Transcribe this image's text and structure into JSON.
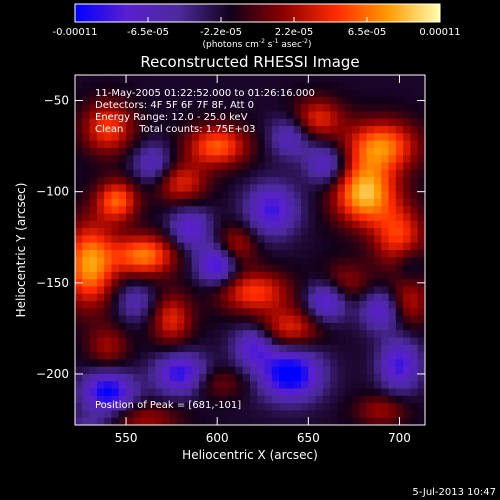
{
  "colorbar": {
    "ticks": [
      "-0.00011",
      "-6.5e-05",
      "-2.2e-05",
      "2.2e-05",
      "6.5e-05",
      "0.00011"
    ],
    "unit_prefix": "(photons cm",
    "unit_exp1": "-2",
    "unit_mid": " s",
    "unit_exp2": "-1",
    "unit_mid2": " asec",
    "unit_exp3": "-2",
    "unit_suffix": ")"
  },
  "annotations": {
    "line1": "11-May-2005 01:22:52.000 to 01:26:16.000",
    "line2": "Detectors: 4F 5F 6F 7F 8F, Att 0",
    "line3": "Energy Range: 12.0 - 25.0 keV",
    "line4": "Clean     Total counts: 1.75E+03",
    "peak": "Position of Peak = [681,-101]"
  },
  "footer": {
    "timestamp": "5-Jul-2013 10:47"
  },
  "colors": {
    "colormap": [
      "#0000ff",
      "#5a1fd0",
      "#4b2a9a",
      "#120018",
      "#8a0000",
      "#ff2a00",
      "#ff9a00",
      "#ffffb0"
    ]
  },
  "chart_data": {
    "type": "heatmap",
    "title": "Reconstructed RHESSI Image",
    "xlabel": "Heliocentric X (arcsec)",
    "ylabel": "Heliocentric Y (arcsec)",
    "xlim": [
      522,
      714
    ],
    "ylim": [
      -228,
      -36
    ],
    "x_ticks": [
      550,
      600,
      650,
      700
    ],
    "y_ticks": [
      -50,
      -100,
      -150,
      -200
    ],
    "x_tick_labels": [
      "550",
      "600",
      "650",
      "700"
    ],
    "y_tick_labels": [
      "−50",
      "−100",
      "−150",
      "−200"
    ],
    "colorbar_range": [
      -0.00011,
      0.00011
    ],
    "peak_position": [
      681,
      -101
    ],
    "blobs": [
      {
        "x": 681,
        "y": -101,
        "value": 0.00011,
        "sx": 12,
        "sy": 12
      },
      {
        "x": 690,
        "y": -75,
        "value": 9e-05,
        "sx": 14,
        "sy": 10
      },
      {
        "x": 700,
        "y": -125,
        "value": 7e-05,
        "sx": 10,
        "sy": 12
      },
      {
        "x": 655,
        "y": -60,
        "value": 6e-05,
        "sx": 10,
        "sy": 8
      },
      {
        "x": 530,
        "y": -140,
        "value": 0.0001,
        "sx": 10,
        "sy": 16
      },
      {
        "x": 560,
        "y": -135,
        "value": 9e-05,
        "sx": 12,
        "sy": 8
      },
      {
        "x": 545,
        "y": -105,
        "value": 8e-05,
        "sx": 8,
        "sy": 8
      },
      {
        "x": 600,
        "y": -75,
        "value": 8e-05,
        "sx": 12,
        "sy": 8
      },
      {
        "x": 580,
        "y": -95,
        "value": 6e-05,
        "sx": 10,
        "sy": 8
      },
      {
        "x": 540,
        "y": -65,
        "value": 7e-05,
        "sx": 10,
        "sy": 10
      },
      {
        "x": 620,
        "y": -155,
        "value": 7e-05,
        "sx": 14,
        "sy": 8
      },
      {
        "x": 640,
        "y": -175,
        "value": 6e-05,
        "sx": 12,
        "sy": 8
      },
      {
        "x": 610,
        "y": -130,
        "value": 5e-05,
        "sx": 8,
        "sy": 8
      },
      {
        "x": 575,
        "y": -170,
        "value": 6e-05,
        "sx": 8,
        "sy": 10
      },
      {
        "x": 540,
        "y": -185,
        "value": 4e-05,
        "sx": 8,
        "sy": 8
      },
      {
        "x": 705,
        "y": -160,
        "value": 5e-05,
        "sx": 8,
        "sy": 10
      },
      {
        "x": 670,
        "y": -150,
        "value": 4e-05,
        "sx": 10,
        "sy": 8
      },
      {
        "x": 600,
        "y": -205,
        "value": 3e-05,
        "sx": 12,
        "sy": 6
      },
      {
        "x": 690,
        "y": -220,
        "value": 4e-05,
        "sx": 10,
        "sy": 6
      },
      {
        "x": 560,
        "y": -225,
        "value": 4e-05,
        "sx": 14,
        "sy": 6
      },
      {
        "x": 540,
        "y": -210,
        "value": -9e-05,
        "sx": 10,
        "sy": 8
      },
      {
        "x": 580,
        "y": -200,
        "value": -8e-05,
        "sx": 10,
        "sy": 8
      },
      {
        "x": 640,
        "y": -200,
        "value": -0.0001,
        "sx": 12,
        "sy": 10
      },
      {
        "x": 660,
        "y": -160,
        "value": -7e-05,
        "sx": 8,
        "sy": 8
      },
      {
        "x": 620,
        "y": -185,
        "value": -6e-05,
        "sx": 8,
        "sy": 8
      },
      {
        "x": 700,
        "y": -195,
        "value": -7e-05,
        "sx": 8,
        "sy": 10
      },
      {
        "x": 630,
        "y": -110,
        "value": -7e-05,
        "sx": 10,
        "sy": 10
      },
      {
        "x": 600,
        "y": -140,
        "value": -8e-05,
        "sx": 8,
        "sy": 8
      },
      {
        "x": 585,
        "y": -120,
        "value": -6e-05,
        "sx": 8,
        "sy": 8
      },
      {
        "x": 660,
        "y": -85,
        "value": -6e-05,
        "sx": 8,
        "sy": 8
      },
      {
        "x": 640,
        "y": -70,
        "value": -5e-05,
        "sx": 8,
        "sy": 8
      },
      {
        "x": 565,
        "y": -85,
        "value": -5e-05,
        "sx": 8,
        "sy": 8
      },
      {
        "x": 690,
        "y": -165,
        "value": -6e-05,
        "sx": 8,
        "sy": 8
      },
      {
        "x": 555,
        "y": -160,
        "value": -4e-05,
        "sx": 8,
        "sy": 8
      },
      {
        "x": 705,
        "y": -140,
        "value": -3e-05,
        "sx": 6,
        "sy": 8
      },
      {
        "x": 530,
        "y": -230,
        "value": -3e-05,
        "sx": 10,
        "sy": 6
      }
    ]
  }
}
